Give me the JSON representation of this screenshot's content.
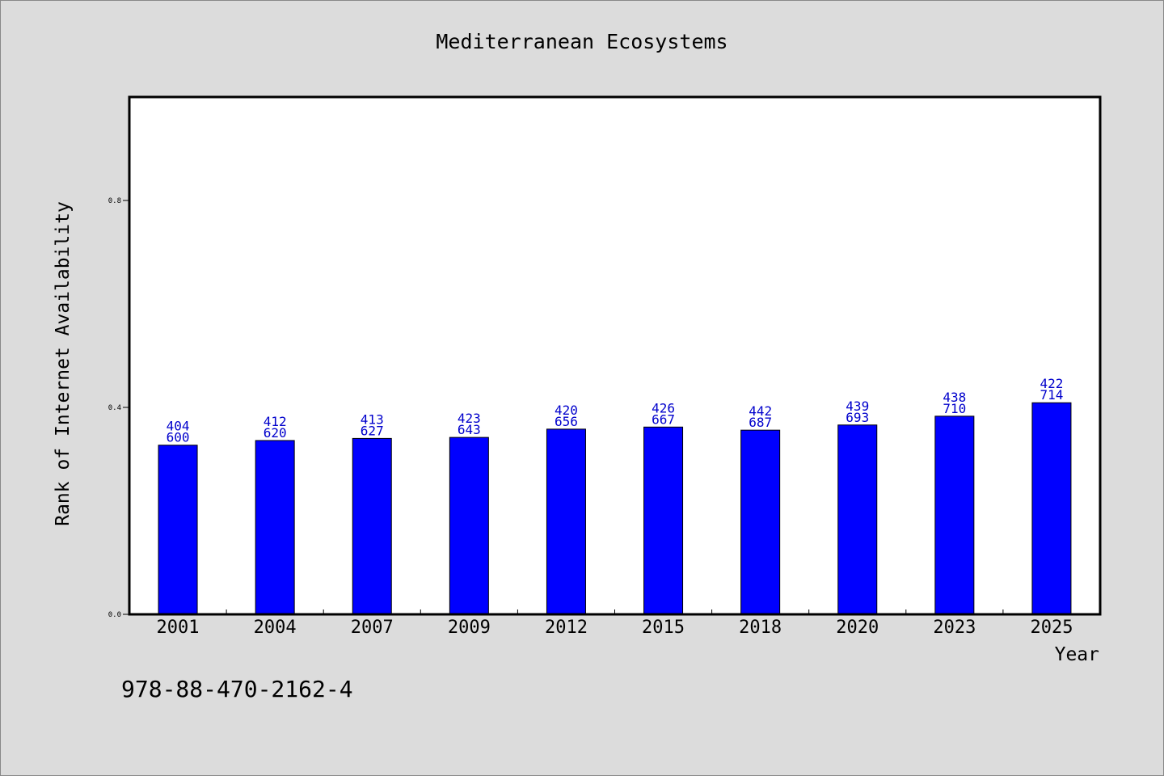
{
  "chart_data": {
    "type": "bar",
    "title": "Mediterranean Ecosystems",
    "xlabel": "Year",
    "ylabel": "Rank of Internet Availability",
    "ylim": [
      0,
      1.0
    ],
    "yticks": [
      "0.0",
      "0.4",
      "0.8"
    ],
    "grid": false,
    "legend": "none",
    "categories": [
      "2001",
      "2004",
      "2007",
      "2009",
      "2012",
      "2015",
      "2018",
      "2020",
      "2023",
      "2025"
    ],
    "values": [
      0.327,
      0.336,
      0.34,
      0.342,
      0.358,
      0.362,
      0.356,
      0.366,
      0.383,
      0.409
    ],
    "labels_top": [
      "404",
      "412",
      "413",
      "423",
      "420",
      "426",
      "442",
      "439",
      "438",
      "422"
    ],
    "labels_bottom": [
      "600",
      "620",
      "627",
      "643",
      "656",
      "667",
      "687",
      "693",
      "710",
      "714"
    ],
    "bar_color": "#0000ff",
    "label_color": "#0000cc",
    "footnote": "978-88-470-2162-4"
  }
}
